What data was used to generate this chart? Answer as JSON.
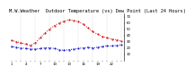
{
  "title": "M.W.Weather  Outdoor Temperature (vs) Dew Point (Last 24 Hours)",
  "bg_color": "#ffffff",
  "temp_color": "#cc0000",
  "dew_color": "#0000cc",
  "grid_color": "#999999",
  "ylim": [
    0,
    75
  ],
  "yticks": [
    10,
    20,
    30,
    40,
    50,
    60,
    70
  ],
  "ytick_labels": [
    "10",
    "20",
    "30",
    "40",
    "50",
    "60",
    "70"
  ],
  "temp_values": [
    32,
    30,
    28,
    26,
    24,
    28,
    36,
    44,
    50,
    56,
    60,
    63,
    65,
    64,
    62,
    58,
    52,
    46,
    42,
    38,
    36,
    34,
    33,
    31
  ],
  "dew_values": [
    22,
    21,
    20,
    19,
    18,
    18,
    19,
    20,
    20,
    19,
    17,
    16,
    17,
    18,
    19,
    20,
    21,
    20,
    21,
    22,
    23,
    23,
    24,
    25
  ],
  "n_points": 24,
  "vline_positions": [
    2,
    5,
    8,
    11,
    14,
    17,
    20,
    23
  ],
  "title_fontsize": 3.8,
  "tick_fontsize": 2.8,
  "linewidth": 0.7,
  "markersize": 1.0,
  "grid_linewidth": 0.25,
  "grid_linestyle": ":"
}
